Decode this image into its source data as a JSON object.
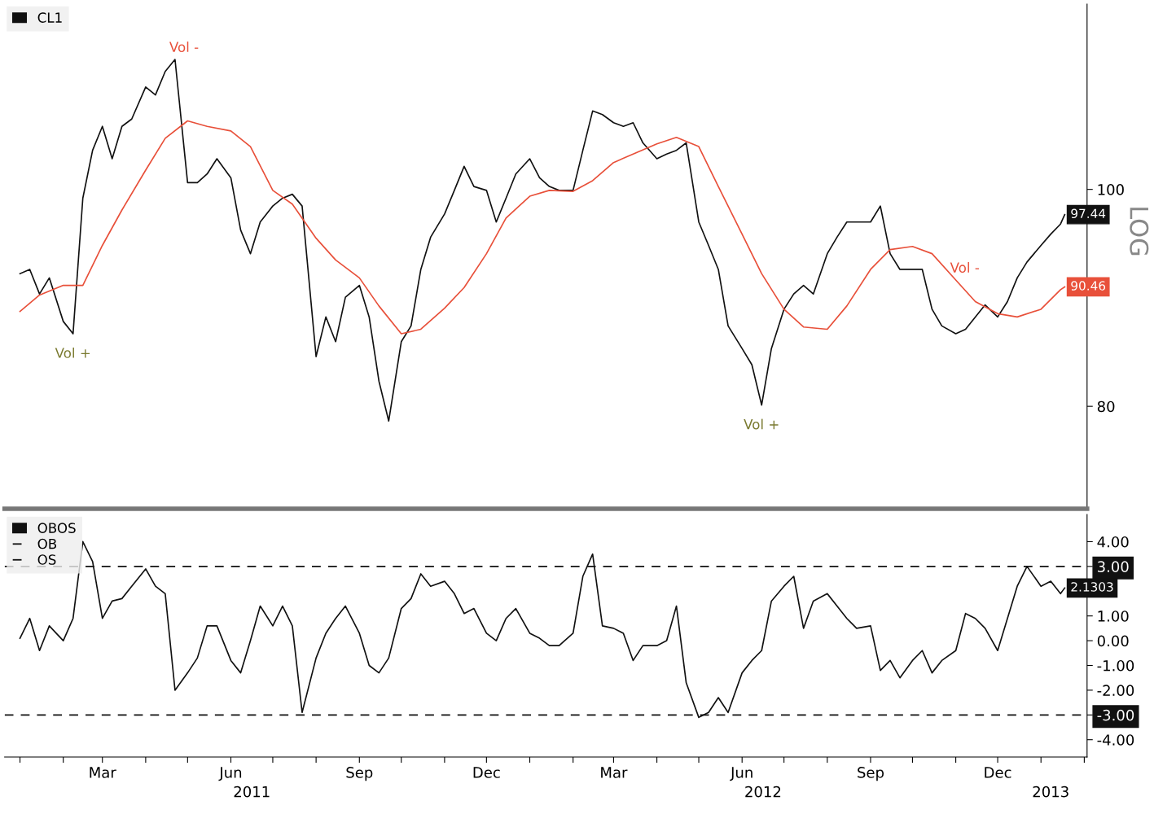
{
  "chart_data": [
    {
      "type": "line",
      "log": "y",
      "legend": "top left",
      "tick_labels": "y",
      "ylim": [
        72,
        121
      ],
      "yticks": [
        80,
        100
      ],
      "xlim": [
        "2010-12-21",
        "2013-02-03"
      ],
      "x": [
        "2011-01-01",
        "2011-01-08",
        "2011-01-15",
        "2011-01-22",
        "2011-02-01",
        "2011-02-08",
        "2011-02-15",
        "2011-02-22",
        "2011-03-01",
        "2011-03-08",
        "2011-03-15",
        "2011-03-22",
        "2011-04-01",
        "2011-04-08",
        "2011-04-15",
        "2011-04-22",
        "2011-05-01",
        "2011-05-08",
        "2011-05-15",
        "2011-05-22",
        "2011-06-01",
        "2011-06-08",
        "2011-06-15",
        "2011-06-22",
        "2011-07-01",
        "2011-07-08",
        "2011-07-15",
        "2011-07-22",
        "2011-08-01",
        "2011-08-08",
        "2011-08-15",
        "2011-08-22",
        "2011-09-01",
        "2011-09-08",
        "2011-09-15",
        "2011-09-22",
        "2011-10-01",
        "2011-10-08",
        "2011-10-15",
        "2011-10-22",
        "2011-11-01",
        "2011-11-08",
        "2011-11-15",
        "2011-11-22",
        "2011-12-01",
        "2011-12-08",
        "2011-12-15",
        "2011-12-22",
        "2012-01-01",
        "2012-01-08",
        "2012-01-15",
        "2012-01-22",
        "2012-02-01",
        "2012-02-08",
        "2012-02-15",
        "2012-02-22",
        "2012-03-01",
        "2012-03-08",
        "2012-03-15",
        "2012-03-22",
        "2012-04-01",
        "2012-04-08",
        "2012-04-15",
        "2012-04-22",
        "2012-05-01",
        "2012-05-08",
        "2012-05-15",
        "2012-05-22",
        "2012-06-01",
        "2012-06-08",
        "2012-06-15",
        "2012-06-22",
        "2012-07-01",
        "2012-07-08",
        "2012-07-15",
        "2012-07-22",
        "2012-08-01",
        "2012-08-08",
        "2012-08-15",
        "2012-08-22",
        "2012-09-01",
        "2012-09-08",
        "2012-09-15",
        "2012-09-22",
        "2012-10-01",
        "2012-10-08",
        "2012-10-15",
        "2012-10-22",
        "2012-11-01",
        "2012-11-08",
        "2012-11-15",
        "2012-11-22",
        "2012-12-01",
        "2012-12-08",
        "2012-12-15",
        "2012-12-22",
        "2013-01-01",
        "2013-01-08",
        "2013-01-15",
        "2013-01-18"
      ],
      "series": [
        {
          "name": "CL1",
          "color": "#111111",
          "values": [
            91.7,
            92.1,
            89.8,
            91.3,
            87.3,
            86.2,
            99.1,
            104.1,
            106.7,
            103.2,
            106.7,
            107.5,
            111.1,
            110.2,
            112.9,
            114.3,
            100.7,
            100.7,
            101.6,
            103.2,
            101.2,
            95.9,
            93.6,
            96.7,
            98.3,
            99.1,
            99.5,
            98.3,
            84.2,
            87.7,
            85.5,
            89.5,
            90.6,
            87.7,
            82.1,
            78.8,
            85.5,
            86.9,
            92.1,
            95.2,
            97.5,
            99.9,
            102.4,
            100.3,
            99.9,
            96.7,
            99.1,
            101.6,
            103.2,
            101.2,
            100.3,
            99.9,
            99.9,
            104.1,
            108.4,
            108.0,
            107.1,
            106.7,
            107.1,
            104.9,
            103.2,
            103.7,
            104.1,
            104.9,
            96.7,
            94.4,
            92.1,
            86.9,
            84.9,
            83.5,
            80.1,
            84.9,
            88.4,
            89.8,
            90.6,
            89.8,
            93.6,
            95.2,
            96.7,
            96.7,
            96.7,
            98.3,
            93.6,
            92.1,
            92.1,
            92.1,
            88.4,
            86.9,
            86.2,
            86.6,
            87.7,
            88.8,
            87.7,
            89.1,
            91.3,
            92.8,
            94.4,
            95.5,
            96.5,
            97.44
          ],
          "value_labels": [
            null,
            null,
            null,
            null,
            null,
            null,
            null,
            null,
            null,
            null,
            null,
            null,
            null,
            null,
            null,
            null,
            null,
            null,
            null,
            null,
            null,
            null,
            null,
            null,
            null,
            null,
            null,
            null,
            null,
            null,
            null,
            null,
            null,
            null,
            null,
            null,
            null,
            null,
            null,
            null,
            null,
            null,
            null,
            null,
            null,
            null,
            null,
            null,
            null,
            null,
            null,
            null,
            null,
            null,
            null,
            null,
            null,
            null,
            null,
            null,
            null,
            null,
            null,
            null,
            null,
            null,
            null,
            null,
            null,
            null,
            null,
            null,
            null,
            null,
            null,
            null,
            null,
            null,
            null,
            null,
            null,
            null,
            null,
            null,
            null,
            null,
            null,
            null,
            null,
            null,
            null,
            null,
            null,
            null,
            null,
            null,
            null,
            null,
            null,
            "97.44"
          ]
        },
        {
          "color": "#e8503a",
          "x": [
            "2011-01-01",
            "2011-01-15",
            "2011-02-01",
            "2011-02-15",
            "2011-03-01",
            "2011-03-15",
            "2011-04-01",
            "2011-04-15",
            "2011-05-01",
            "2011-05-15",
            "2011-06-01",
            "2011-06-15",
            "2011-07-01",
            "2011-07-15",
            "2011-08-01",
            "2011-08-15",
            "2011-09-01",
            "2011-09-15",
            "2011-10-01",
            "2011-10-15",
            "2011-11-01",
            "2011-11-15",
            "2011-12-01",
            "2011-12-15",
            "2012-01-01",
            "2012-01-15",
            "2012-02-01",
            "2012-02-15",
            "2012-03-01",
            "2012-03-15",
            "2012-04-01",
            "2012-04-15",
            "2012-05-01",
            "2012-05-15",
            "2012-06-01",
            "2012-06-15",
            "2012-07-01",
            "2012-07-15",
            "2012-08-01",
            "2012-08-15",
            "2012-09-01",
            "2012-09-15",
            "2012-10-01",
            "2012-10-15",
            "2012-11-01",
            "2012-11-15",
            "2012-12-01",
            "2012-12-15",
            "2013-01-01",
            "2013-01-15",
            "2013-01-18"
          ],
          "values": [
            88.2,
            89.7,
            90.6,
            90.6,
            94.4,
            97.9,
            102.0,
            105.4,
            107.3,
            106.7,
            106.2,
            104.5,
            99.9,
            98.5,
            95.1,
            93.0,
            91.3,
            88.7,
            86.2,
            86.6,
            88.5,
            90.4,
            93.6,
            97.1,
            99.3,
            99.9,
            99.8,
            100.9,
            102.8,
            103.7,
            104.8,
            105.5,
            104.5,
            100.3,
            95.5,
            91.7,
            88.4,
            86.8,
            86.6,
            88.7,
            92.1,
            94.0,
            94.3,
            93.6,
            91.1,
            89.1,
            88.0,
            87.7,
            88.4,
            90.2,
            90.46
          ],
          "value_labels": [
            null,
            null,
            null,
            null,
            null,
            null,
            null,
            null,
            null,
            null,
            null,
            null,
            null,
            null,
            null,
            null,
            null,
            null,
            null,
            null,
            null,
            null,
            null,
            null,
            null,
            null,
            null,
            null,
            null,
            null,
            null,
            null,
            null,
            null,
            null,
            null,
            null,
            null,
            null,
            null,
            null,
            null,
            null,
            null,
            null,
            null,
            null,
            null,
            null,
            null,
            "90.46"
          ]
        }
      ],
      "annotations": [
        {
          "text": "Vol +",
          "x": "2011-02-08",
          "y": 86.2
        },
        {
          "text": "Vol -",
          "x": "2011-04-22",
          "y": 114.3
        },
        {
          "text": "Vol +",
          "x": "2012-06-15",
          "y": 80.1
        },
        {
          "text": "Vol -",
          "x": "2012-11-01",
          "y": 91.1
        },
        "LOG"
      ]
    },
    {
      "type": "line",
      "legend": "top left",
      "ylim": [
        -4.7,
        5.1
      ],
      "yticks": [
        {
          "value": -4,
          "label": "-4.00"
        },
        {
          "value": -3,
          "label": "-3.00"
        },
        {
          "value": -2,
          "label": "-2.00"
        },
        {
          "value": -1,
          "label": "-1.00"
        },
        {
          "value": 0,
          "label": "0.00"
        },
        {
          "value": 1,
          "label": "1.00"
        },
        {
          "value": 3,
          "label": "3.00"
        },
        {
          "value": 4,
          "label": "4.00"
        }
      ],
      "xlim": [
        "2010-12-21",
        "2013-02-03"
      ],
      "xticks": [
        {
          "value": "2011-01-01",
          "label": null
        },
        {
          "value": "2011-02-01",
          "label": null
        },
        {
          "value": "2011-03-01",
          "label": "Mar"
        },
        {
          "value": "2011-04-01",
          "label": null
        },
        {
          "value": "2011-05-01",
          "label": null
        },
        {
          "value": "2011-06-01",
          "label": "Jun"
        },
        {
          "value": "2011-07-01",
          "label": null
        },
        {
          "value": "2011-08-01",
          "label": null
        },
        {
          "value": "2011-09-01",
          "label": "Sep"
        },
        {
          "value": "2011-10-01",
          "label": null
        },
        {
          "value": "2011-11-01",
          "label": null
        },
        {
          "value": "2011-12-01",
          "label": "Dec"
        },
        {
          "value": "2012-01-01",
          "label": null
        },
        {
          "value": "2012-02-01",
          "label": null
        },
        {
          "value": "2012-03-01",
          "label": "Mar"
        },
        {
          "value": "2012-04-01",
          "label": null
        },
        {
          "value": "2012-05-01",
          "label": null
        },
        {
          "value": "2012-06-01",
          "label": "Jun"
        },
        {
          "value": "2012-07-01",
          "label": null
        },
        {
          "value": "2012-08-01",
          "label": null
        },
        {
          "value": "2012-09-01",
          "label": "Sep"
        },
        {
          "value": "2012-10-01",
          "label": null
        },
        {
          "value": "2012-11-01",
          "label": null
        },
        {
          "value": "2012-12-01",
          "label": "Dec"
        },
        {
          "value": "2013-01-01",
          "label": null
        },
        {
          "value": "2013-02-01",
          "label": null
        }
      ],
      "x2lim": [
        "2010-12-21",
        "2013-02-03"
      ],
      "x2ticks": [
        {
          "value": "2011-06-16",
          "label": "2011"
        },
        {
          "value": "2012-06-16",
          "label": "2012"
        },
        {
          "value": "2013-01-08",
          "label": "2013"
        }
      ],
      "x": [
        "2011-01-01",
        "2011-01-08",
        "2011-01-15",
        "2011-01-22",
        "2011-02-01",
        "2011-02-08",
        "2011-02-15",
        "2011-02-22",
        "2011-03-01",
        "2011-03-08",
        "2011-03-15",
        "2011-03-22",
        "2011-04-01",
        "2011-04-08",
        "2011-04-15",
        "2011-04-22",
        "2011-05-01",
        "2011-05-08",
        "2011-05-15",
        "2011-05-22",
        "2011-06-01",
        "2011-06-08",
        "2011-06-15",
        "2011-06-22",
        "2011-07-01",
        "2011-07-08",
        "2011-07-15",
        "2011-07-22",
        "2011-08-01",
        "2011-08-08",
        "2011-08-15",
        "2011-08-22",
        "2011-09-01",
        "2011-09-08",
        "2011-09-15",
        "2011-09-22",
        "2011-10-01",
        "2011-10-08",
        "2011-10-15",
        "2011-10-22",
        "2011-11-01",
        "2011-11-08",
        "2011-11-15",
        "2011-11-22",
        "2011-12-01",
        "2011-12-08",
        "2011-12-15",
        "2011-12-22",
        "2012-01-01",
        "2012-01-08",
        "2012-01-15",
        "2012-01-22",
        "2012-02-01",
        "2012-02-08",
        "2012-02-15",
        "2012-02-22",
        "2012-03-01",
        "2012-03-08",
        "2012-03-15",
        "2012-03-22",
        "2012-04-01",
        "2012-04-08",
        "2012-04-15",
        "2012-04-22",
        "2012-05-01",
        "2012-05-08",
        "2012-05-15",
        "2012-05-22",
        "2012-06-01",
        "2012-06-08",
        "2012-06-15",
        "2012-06-22",
        "2012-07-01",
        "2012-07-08",
        "2012-07-15",
        "2012-07-22",
        "2012-08-01",
        "2012-08-08",
        "2012-08-15",
        "2012-08-22",
        "2012-09-01",
        "2012-09-08",
        "2012-09-15",
        "2012-09-22",
        "2012-10-01",
        "2012-10-08",
        "2012-10-15",
        "2012-10-22",
        "2012-11-01",
        "2012-11-08",
        "2012-11-15",
        "2012-11-22",
        "2012-12-01",
        "2012-12-08",
        "2012-12-15",
        "2012-12-22",
        "2013-01-01",
        "2013-01-08",
        "2013-01-15",
        "2013-01-18"
      ],
      "series": [
        {
          "name": "OBOS",
          "color": "#111111",
          "values": [
            0.1,
            0.9,
            -0.4,
            0.6,
            0.0,
            0.9,
            4.0,
            3.2,
            0.9,
            1.6,
            1.7,
            2.2,
            2.9,
            2.2,
            1.9,
            -2.0,
            -1.3,
            -0.7,
            0.6,
            0.6,
            -0.8,
            -1.3,
            0.0,
            1.4,
            0.6,
            1.4,
            0.6,
            -2.9,
            -0.7,
            0.3,
            0.9,
            1.4,
            0.3,
            -1.0,
            -1.3,
            -0.7,
            1.3,
            1.7,
            2.7,
            2.2,
            2.4,
            1.9,
            1.1,
            1.3,
            0.3,
            0.0,
            0.9,
            1.3,
            0.3,
            0.1,
            -0.2,
            -0.2,
            0.3,
            2.6,
            3.5,
            0.6,
            0.5,
            0.3,
            -0.8,
            -0.2,
            -0.2,
            0.0,
            1.4,
            -1.7,
            -3.1,
            -2.9,
            -2.3,
            -2.9,
            -1.3,
            -0.8,
            -0.4,
            1.6,
            2.2,
            2.6,
            0.5,
            1.6,
            1.9,
            1.4,
            0.9,
            0.5,
            0.6,
            -1.2,
            -0.8,
            -1.5,
            -0.8,
            -0.4,
            -1.3,
            -0.8,
            -0.4,
            1.1,
            0.9,
            0.5,
            -0.4,
            0.9,
            2.2,
            3.0,
            2.2,
            2.4,
            1.9,
            2.1303
          ],
          "value_labels": [
            null,
            null,
            null,
            null,
            null,
            null,
            null,
            null,
            null,
            null,
            null,
            null,
            null,
            null,
            null,
            null,
            null,
            null,
            null,
            null,
            null,
            null,
            null,
            null,
            null,
            null,
            null,
            null,
            null,
            null,
            null,
            null,
            null,
            null,
            null,
            null,
            null,
            null,
            null,
            null,
            null,
            null,
            null,
            null,
            null,
            null,
            null,
            null,
            null,
            null,
            null,
            null,
            null,
            null,
            null,
            null,
            null,
            null,
            null,
            null,
            null,
            null,
            null,
            null,
            null,
            null,
            null,
            null,
            null,
            null,
            null,
            null,
            null,
            null,
            null,
            null,
            null,
            null,
            null,
            null,
            null,
            null,
            null,
            null,
            null,
            null,
            null,
            null,
            null,
            null,
            null,
            null,
            null,
            null,
            null,
            null,
            null,
            null,
            null,
            "2.1303"
          ]
        }
      ],
      "ref_lines": [
        {
          "axis": "y",
          "value": 3,
          "label": "OB",
          "color": "#111111",
          "line_style": "dashed"
        },
        {
          "axis": "y",
          "value": -3,
          "label": "OS",
          "color": "#111111",
          "line_style": "dashed"
        }
      ]
    }
  ]
}
